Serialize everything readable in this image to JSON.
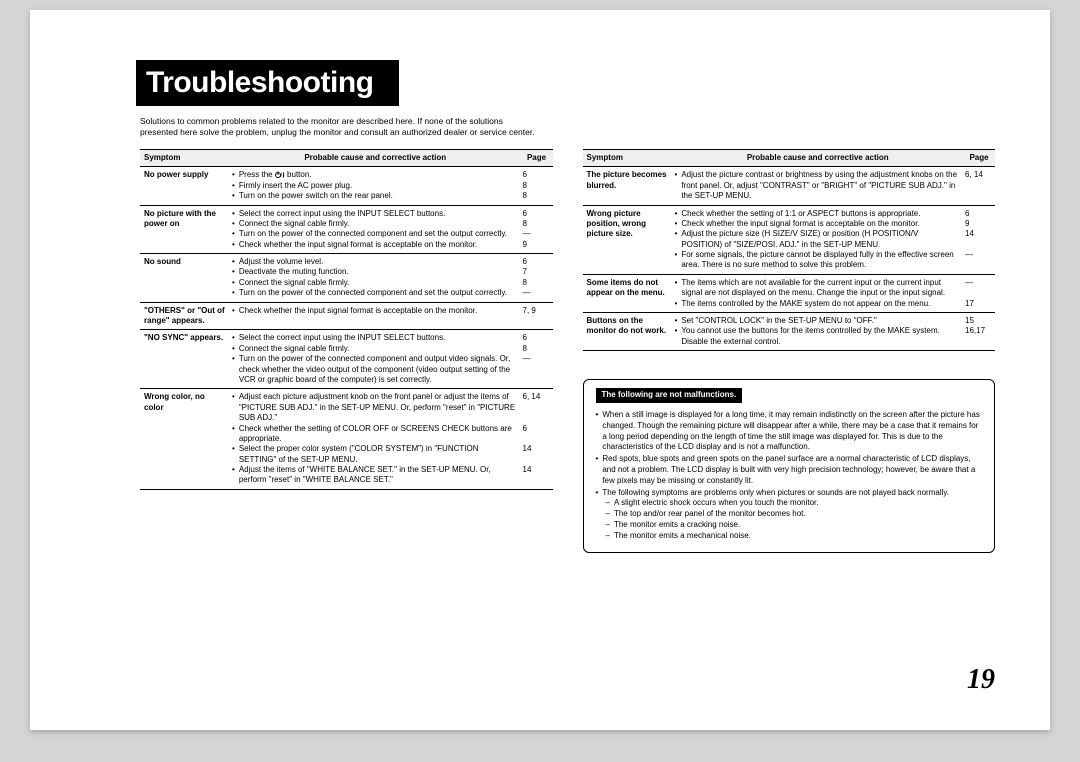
{
  "title": "Troubleshooting",
  "intro": "Solutions to common problems related to the monitor are described here. If none of the solutions presented here solve the problem, unplug the monitor and consult an authorized dealer or service center.",
  "headers": {
    "symptom": "Symptom",
    "cause": "Probable cause and corrective action",
    "page": "Page"
  },
  "left_rows": [
    {
      "symptom": "No power supply",
      "items": [
        {
          "text_pre": "Press the ",
          "icon": "power",
          "text_post": " button.",
          "page": "6"
        },
        {
          "text": "Firmly insert the AC power plug.",
          "page": "8"
        },
        {
          "text": "Turn on the power switch on the rear panel.",
          "page": "8"
        }
      ]
    },
    {
      "symptom": "No picture with the power on",
      "items": [
        {
          "text": "Select the correct input using the INPUT SELECT buttons.",
          "page": "6"
        },
        {
          "text": "Connect the signal cable firmly.",
          "page": "8"
        },
        {
          "text": "Turn on the power of the connected component and set the output correctly.",
          "page": "—"
        },
        {
          "text": "Check whether the input signal format is acceptable on the monitor.",
          "page": "9"
        }
      ]
    },
    {
      "symptom": "No sound",
      "items": [
        {
          "text": "Adjust the volume level.",
          "page": "6"
        },
        {
          "text": "Deactivate the muting function.",
          "page": "7"
        },
        {
          "text": "Connect the signal cable firmly.",
          "page": "8"
        },
        {
          "text": "Turn on the power of the connected component and set the output correctly.",
          "page": "—"
        }
      ]
    },
    {
      "symptom": "\"OTHERS\" or \"Out of range\" appears.",
      "items": [
        {
          "text": "Check whether the input signal format is acceptable on the monitor.",
          "page": "7, 9"
        }
      ]
    },
    {
      "symptom": "\"NO SYNC\" appears.",
      "items": [
        {
          "text": "Select the correct input using the INPUT SELECT buttons.",
          "page": "6"
        },
        {
          "text": "Connect the signal cable firmly.",
          "page": "8"
        },
        {
          "text": "Turn on the power of the connected component and output video signals. Or, check whether the video output of the component (video output setting of the VCR or graphic board of the computer) is set correctly.",
          "page": "—"
        }
      ]
    },
    {
      "symptom": "Wrong color, no color",
      "items": [
        {
          "text": "Adjust each picture adjustment knob on the front panel or adjust the items of \"PICTURE SUB ADJ.\" in the SET-UP MENU. Or, perform \"reset\" in \"PICTURE SUB ADJ.\"",
          "page": "6, 14"
        },
        {
          "text": "Check whether the setting of COLOR OFF or SCREENS CHECK buttons are appropriate.",
          "page": "6"
        },
        {
          "text": "Select the proper color system (\"COLOR SYSTEM\") in \"FUNCTION SETTING\" of the SET-UP MENU.",
          "page": "14"
        },
        {
          "text": "Adjust the items of \"WHITE BALANCE SET.\" in the SET-UP MENU. Or, perform \"reset\" in \"WHITE BALANCE SET.\"",
          "page": "14"
        }
      ]
    }
  ],
  "right_rows": [
    {
      "symptom": "The picture becomes blurred.",
      "items": [
        {
          "text": "Adjust the picture contrast or brightness by using the adjustment knobs on the front panel. Or, adjust \"CONTRAST\" or \"BRIGHT\" of \"PICTURE SUB ADJ.\" in the SET-UP MENU.",
          "page": "6, 14"
        }
      ]
    },
    {
      "symptom": "Wrong picture position, wrong picture size.",
      "items": [
        {
          "text": "Check whether the setting of 1:1 or ASPECT buttons is appropriate.",
          "page": "6"
        },
        {
          "text": "Check whether the input signal format is acceptable on the monitor.",
          "page": "9"
        },
        {
          "text": "Adjust the picture size (H SIZE/V SIZE) or position (H POSITION/V POSITION) of \"SIZE/POSI. ADJ.\" in the SET-UP MENU.",
          "page": "14"
        },
        {
          "text": "For some signals, the picture cannot be displayed fully in the effective screen area. There is no sure method to solve this problem.",
          "page": "—"
        }
      ]
    },
    {
      "symptom": "Some items do not appear on the menu.",
      "items": [
        {
          "text": "The items which are not available for the current input or the current input signal are not displayed on the menu. Change the input or the input signal.",
          "page": "—"
        },
        {
          "text": "The items controlled by the MAKE system do not appear on the menu.",
          "page": "17"
        }
      ]
    },
    {
      "symptom": "Buttons on the monitor do not work.",
      "items": [
        {
          "text": "Set \"CONTROL LOCK\" in the SET-UP MENU to \"OFF.\"",
          "page": "15"
        },
        {
          "text": "You cannot use the buttons for the items controlled by the MAKE system. Disable the external control.",
          "page": "16,17"
        }
      ]
    }
  ],
  "box": {
    "title": "The following are not malfunctions.",
    "items": [
      {
        "text": "When a still image is displayed for a long time, it may remain indistinctly on the screen after the picture has changed. Though the remaining picture will disappear after a while, there may be a case that it remains for a long period depending on the length of time the still image was displayed for. This is due to the characteristics of the LCD display and is not a malfunction."
      },
      {
        "text": "Red spots, blue spots and green spots on the panel surface are a normal characteristic of LCD displays, and not a problem. The LCD display is built with very high precision technology; however, be aware that a few pixels may be missing or constantly lit."
      },
      {
        "text": "The following symptoms are problems only when pictures or sounds are not played back normally.",
        "subs": [
          "A slight electric shock occurs when you touch the monitor.",
          "The top and/or rear panel of the monitor becomes hot.",
          "The monitor emits a cracking noise.",
          "The monitor emits a mechanical noise."
        ]
      }
    ]
  },
  "page_number": "19"
}
